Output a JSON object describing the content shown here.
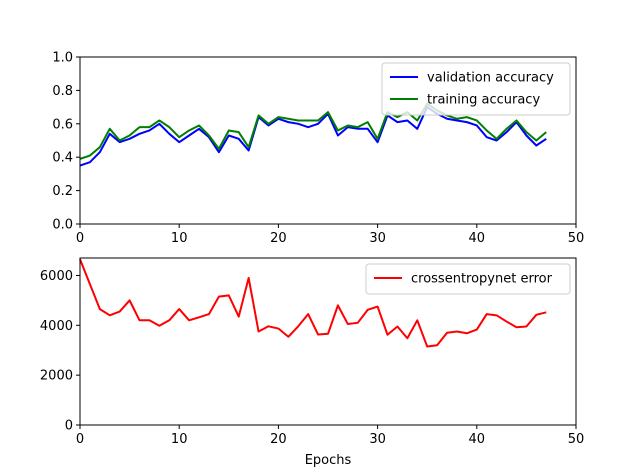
{
  "chart_data": [
    {
      "type": "line",
      "title": "",
      "xlabel": "",
      "ylabel": "",
      "xlim": [
        0,
        50
      ],
      "ylim": [
        0.0,
        1.0
      ],
      "xticks": [
        "0",
        "10",
        "20",
        "30",
        "40",
        "50"
      ],
      "yticks": [
        "0.0",
        "0.2",
        "0.4",
        "0.6",
        "0.8",
        "1.0"
      ],
      "grid": false,
      "legend_position": "top-right",
      "x": [
        0,
        1,
        2,
        3,
        4,
        5,
        6,
        7,
        8,
        9,
        10,
        11,
        12,
        13,
        14,
        15,
        16,
        17,
        18,
        19,
        20,
        21,
        22,
        23,
        24,
        25,
        26,
        27,
        28,
        29,
        30,
        31,
        32,
        33,
        34,
        35,
        36,
        37,
        38,
        39,
        40,
        41,
        42,
        43,
        44,
        45,
        46,
        47
      ],
      "series": [
        {
          "name": "validation accuracy",
          "color": "#0000ff",
          "values": [
            0.35,
            0.37,
            0.43,
            0.54,
            0.49,
            0.51,
            0.54,
            0.56,
            0.6,
            0.54,
            0.49,
            0.53,
            0.57,
            0.52,
            0.43,
            0.53,
            0.51,
            0.44,
            0.64,
            0.59,
            0.63,
            0.61,
            0.6,
            0.58,
            0.6,
            0.66,
            0.53,
            0.58,
            0.57,
            0.57,
            0.49,
            0.65,
            0.61,
            0.62,
            0.57,
            0.7,
            0.66,
            0.63,
            0.62,
            0.61,
            0.59,
            0.52,
            0.5,
            0.55,
            0.61,
            0.53,
            0.47,
            0.51
          ]
        },
        {
          "name": "training accuracy",
          "color": "#008000",
          "values": [
            0.39,
            0.41,
            0.46,
            0.57,
            0.5,
            0.53,
            0.58,
            0.58,
            0.62,
            0.58,
            0.52,
            0.56,
            0.59,
            0.53,
            0.45,
            0.56,
            0.55,
            0.46,
            0.65,
            0.6,
            0.64,
            0.63,
            0.62,
            0.62,
            0.62,
            0.67,
            0.56,
            0.59,
            0.58,
            0.61,
            0.51,
            0.67,
            0.64,
            0.67,
            0.62,
            0.72,
            0.68,
            0.65,
            0.63,
            0.64,
            0.62,
            0.56,
            0.51,
            0.57,
            0.62,
            0.55,
            0.5,
            0.55
          ]
        }
      ]
    },
    {
      "type": "line",
      "title": "",
      "xlabel": "Epochs",
      "ylabel": "",
      "xlim": [
        0,
        50
      ],
      "ylim": [
        0,
        6700
      ],
      "xticks": [
        "0",
        "10",
        "20",
        "30",
        "40",
        "50"
      ],
      "yticks": [
        "0",
        "2000",
        "4000",
        "6000"
      ],
      "grid": false,
      "legend_position": "top-right",
      "x": [
        0,
        1,
        2,
        3,
        4,
        5,
        6,
        7,
        8,
        9,
        10,
        11,
        12,
        13,
        14,
        15,
        16,
        17,
        18,
        19,
        20,
        21,
        22,
        23,
        24,
        25,
        26,
        27,
        28,
        29,
        30,
        31,
        32,
        33,
        34,
        35,
        36,
        37,
        38,
        39,
        40,
        41,
        42,
        43,
        44,
        45,
        46,
        47
      ],
      "series": [
        {
          "name": "crossentropynet error",
          "color": "#ff0000",
          "values": [
            6650,
            5650,
            4650,
            4400,
            4550,
            5000,
            4200,
            4200,
            3980,
            4200,
            4650,
            4200,
            4320,
            4450,
            5150,
            5200,
            4350,
            5900,
            3750,
            3960,
            3870,
            3540,
            3960,
            4450,
            3630,
            3660,
            4800,
            4050,
            4100,
            4620,
            4750,
            3620,
            3950,
            3480,
            4200,
            3150,
            3200,
            3700,
            3750,
            3680,
            3830,
            4450,
            4400,
            4150,
            3920,
            3950,
            4420,
            4520
          ]
        }
      ]
    }
  ]
}
